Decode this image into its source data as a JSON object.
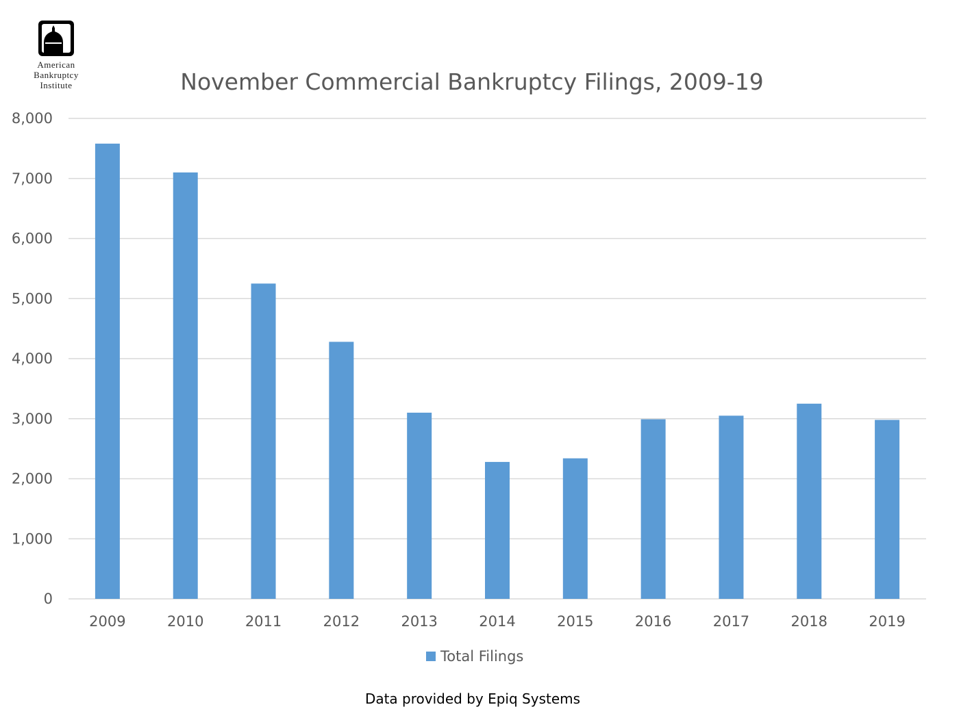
{
  "logo": {
    "lines": [
      "American",
      "Bankruptcy",
      "Institute"
    ]
  },
  "source_note": "Data provided by Epiq Systems",
  "colors": {
    "bar": "#5B9BD5",
    "gridline": "#D9D9D9",
    "axis_text": "#595959"
  },
  "chart_data": {
    "type": "bar",
    "title": "November Commercial Bankruptcy Filings, 2009-19",
    "xlabel": "",
    "ylabel": "",
    "categories": [
      "2009",
      "2010",
      "2011",
      "2012",
      "2013",
      "2014",
      "2015",
      "2016",
      "2017",
      "2018",
      "2019"
    ],
    "series": [
      {
        "name": "Total Filings",
        "values": [
          7580,
          7100,
          5250,
          4280,
          3100,
          2280,
          2340,
          2990,
          3050,
          3250,
          2980
        ]
      }
    ],
    "ylim": [
      0,
      8000
    ],
    "yticks": [
      0,
      1000,
      2000,
      3000,
      4000,
      5000,
      6000,
      7000,
      8000
    ],
    "ytick_labels": [
      "0",
      "1,000",
      "2,000",
      "3,000",
      "4,000",
      "5,000",
      "6,000",
      "7,000",
      "8,000"
    ],
    "grid": true,
    "legend_position": "bottom"
  }
}
